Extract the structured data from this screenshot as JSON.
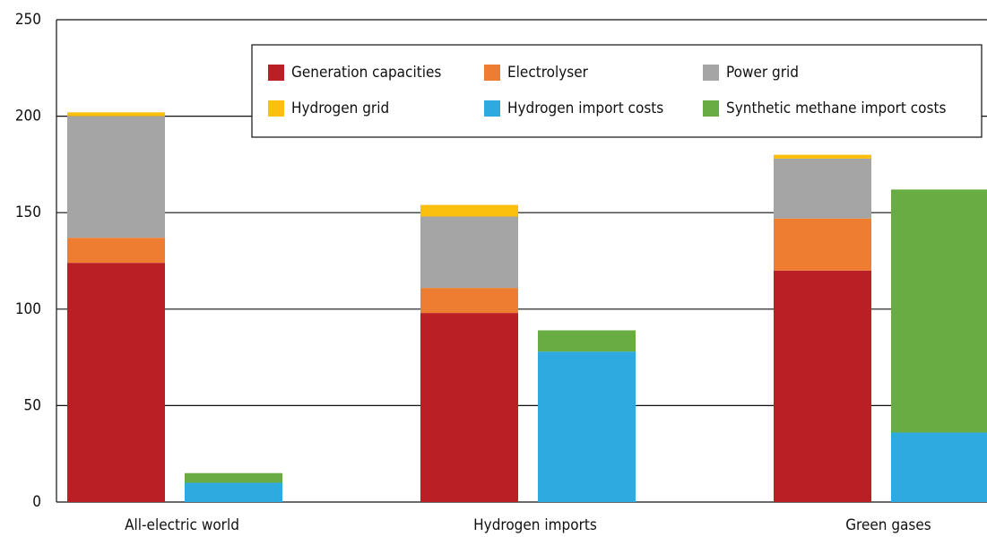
{
  "chart_data": {
    "type": "stacked_bar",
    "categories": [
      "All-electric world",
      "Hydrogen imports",
      "Green gases"
    ],
    "series": [
      {
        "name": "Generation capacities",
        "color": "#bb1f26",
        "stack": 0,
        "values": [
          124,
          98,
          120
        ]
      },
      {
        "name": "Electrolyser",
        "color": "#ee7d31",
        "stack": 0,
        "values": [
          13,
          13,
          27
        ]
      },
      {
        "name": "Power grid",
        "color": "#a5a5a5",
        "stack": 0,
        "values": [
          63,
          37,
          31
        ]
      },
      {
        "name": "Hydrogen grid",
        "color": "#fbbf0e",
        "stack": 0,
        "values": [
          2,
          6,
          2
        ]
      },
      {
        "name": "Hydrogen import costs",
        "color": "#2eaae1",
        "stack": 1,
        "values": [
          10,
          78,
          36
        ]
      },
      {
        "name": "Synthetic methane import costs",
        "color": "#6aac44",
        "stack": 1,
        "values": [
          5,
          11,
          126
        ]
      }
    ],
    "ylim": [
      0,
      250
    ],
    "yticks": [
      0,
      50,
      100,
      150,
      200,
      250
    ],
    "grid": true
  }
}
